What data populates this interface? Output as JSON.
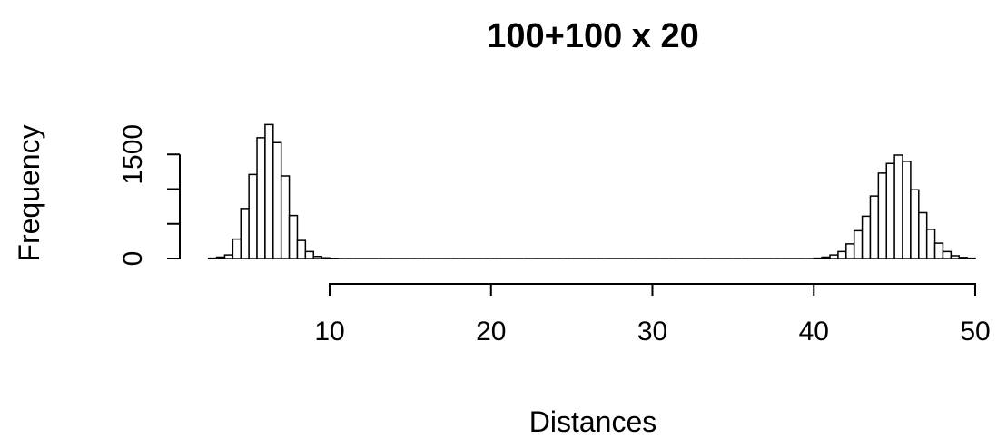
{
  "chart_data": {
    "type": "histogram",
    "title": "100+100 x 20",
    "x_label": "Distances",
    "y_label": "Frequency",
    "bins": [
      2.5,
      3,
      3.5,
      4,
      4.5,
      5,
      5.5,
      6,
      6.5,
      7,
      7.5,
      8,
      8.5,
      9,
      9.5,
      10,
      10.5,
      11,
      11.5,
      12,
      12.5,
      13,
      13.5,
      14,
      14.5,
      15,
      15.5,
      16,
      16.5,
      17,
      17.5,
      18,
      18.5,
      19,
      19.5,
      20,
      20.5,
      21,
      21.5,
      22,
      22.5,
      23,
      23.5,
      24,
      24.5,
      25,
      25.5,
      26,
      26.5,
      27,
      27.5,
      28,
      28.5,
      29,
      29.5,
      30,
      30.5,
      31,
      31.5,
      32,
      32.5,
      33,
      33.5,
      34,
      34.5,
      35,
      35.5,
      36,
      36.5,
      37,
      37.5,
      38,
      38.5,
      39,
      39.5,
      40,
      40.5,
      41,
      41.5,
      42,
      42.5,
      43,
      43.5,
      44,
      44.5,
      45,
      45.5,
      46,
      46.5,
      47,
      47.5,
      48,
      48.5,
      49,
      49.5,
      50
    ],
    "values": [
      5,
      20,
      50,
      280,
      720,
      1210,
      1740,
      1930,
      1670,
      1190,
      620,
      260,
      100,
      30,
      10,
      3,
      0,
      0,
      0,
      0,
      0,
      0,
      0,
      0,
      0,
      0,
      0,
      0,
      0,
      0,
      0,
      0,
      0,
      0,
      0,
      0,
      0,
      0,
      0,
      0,
      0,
      0,
      0,
      0,
      0,
      0,
      0,
      0,
      0,
      0,
      0,
      0,
      0,
      0,
      0,
      0,
      0,
      0,
      0,
      0,
      0,
      0,
      0,
      0,
      0,
      0,
      0,
      0,
      0,
      0,
      0,
      0,
      0,
      0,
      0,
      5,
      20,
      50,
      100,
      210,
      400,
      610,
      900,
      1230,
      1370,
      1490,
      1400,
      990,
      660,
      420,
      220,
      100,
      40,
      15,
      5
    ],
    "color": "#ffffff",
    "xlim": [
      2.5,
      50
    ],
    "xticks": [
      10,
      20,
      30,
      40,
      50
    ],
    "ylim": [
      0,
      2000
    ],
    "yticks": [
      0,
      1500
    ],
    "yticks_unlabeled": [
      500,
      1000
    ]
  }
}
